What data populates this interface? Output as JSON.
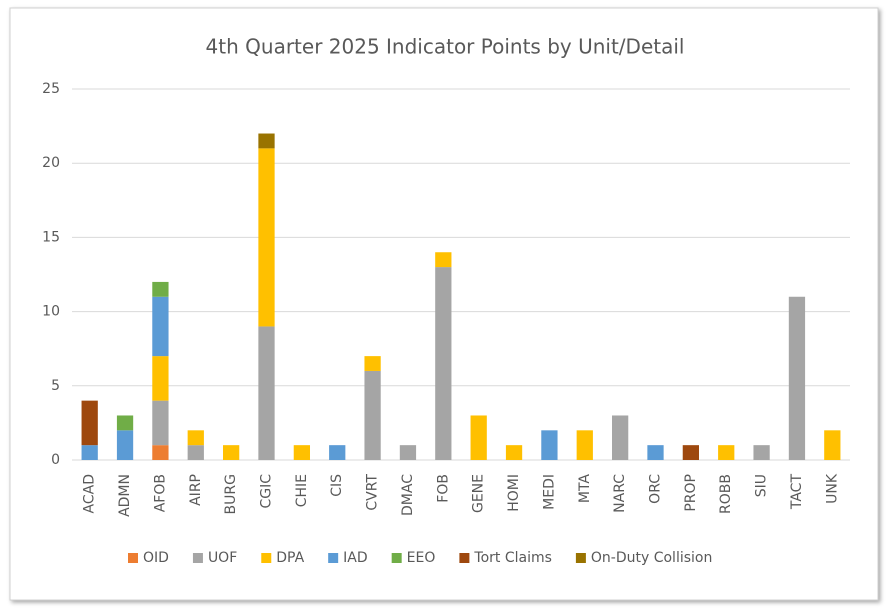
{
  "chart_data": {
    "type": "stacked-bar",
    "title": "4th Quarter 2025 Indicator Points by Unit/Detail",
    "categories": [
      "ACAD",
      "ADMN",
      "AFOB",
      "AIRP",
      "BURG",
      "CGIC",
      "CHIE",
      "CIS",
      "CVRT",
      "DMAC",
      "FOB",
      "GENE",
      "HOMI",
      "MEDI",
      "MTA",
      "NARC",
      "ORC",
      "PROP",
      "ROBB",
      "SIU",
      "TACT",
      "UNK"
    ],
    "series": [
      {
        "name": "OID",
        "color": "#ED7D31",
        "values": [
          0,
          0,
          1,
          0,
          0,
          0,
          0,
          0,
          0,
          0,
          0,
          0,
          0,
          0,
          0,
          0,
          0,
          0,
          0,
          0,
          0,
          0
        ]
      },
      {
        "name": "UOF",
        "color": "#A5A5A5",
        "values": [
          0,
          0,
          3,
          1,
          0,
          9,
          0,
          0,
          6,
          1,
          13,
          0,
          0,
          0,
          0,
          3,
          0,
          0,
          0,
          1,
          11,
          0
        ]
      },
      {
        "name": "DPA",
        "color": "#FFC000",
        "values": [
          0,
          0,
          3,
          1,
          1,
          12,
          1,
          0,
          1,
          0,
          1,
          3,
          1,
          0,
          2,
          0,
          0,
          0,
          1,
          0,
          0,
          2
        ]
      },
      {
        "name": "IAD",
        "color": "#5B9BD5",
        "values": [
          1,
          2,
          4,
          0,
          0,
          0,
          0,
          1,
          0,
          0,
          0,
          0,
          0,
          2,
          0,
          0,
          1,
          0,
          0,
          0,
          0,
          0
        ]
      },
      {
        "name": "EEO",
        "color": "#70AD47",
        "values": [
          0,
          1,
          1,
          0,
          0,
          0,
          0,
          0,
          0,
          0,
          0,
          0,
          0,
          0,
          0,
          0,
          0,
          0,
          0,
          0,
          0,
          0
        ]
      },
      {
        "name": "Tort Claims",
        "color": "#9E480E",
        "values": [
          3,
          0,
          0,
          0,
          0,
          0,
          0,
          0,
          0,
          0,
          0,
          0,
          0,
          0,
          0,
          0,
          0,
          1,
          0,
          0,
          0,
          0
        ]
      },
      {
        "name": "On-Duty Collision",
        "color": "#997300",
        "values": [
          0,
          0,
          0,
          0,
          0,
          1,
          0,
          0,
          0,
          0,
          0,
          0,
          0,
          0,
          0,
          0,
          0,
          0,
          0,
          0,
          0,
          0
        ]
      }
    ],
    "ylim": [
      0,
      25
    ],
    "yticks": [
      0,
      5,
      10,
      15,
      20,
      25
    ],
    "grid": true,
    "legend": "bottom"
  }
}
